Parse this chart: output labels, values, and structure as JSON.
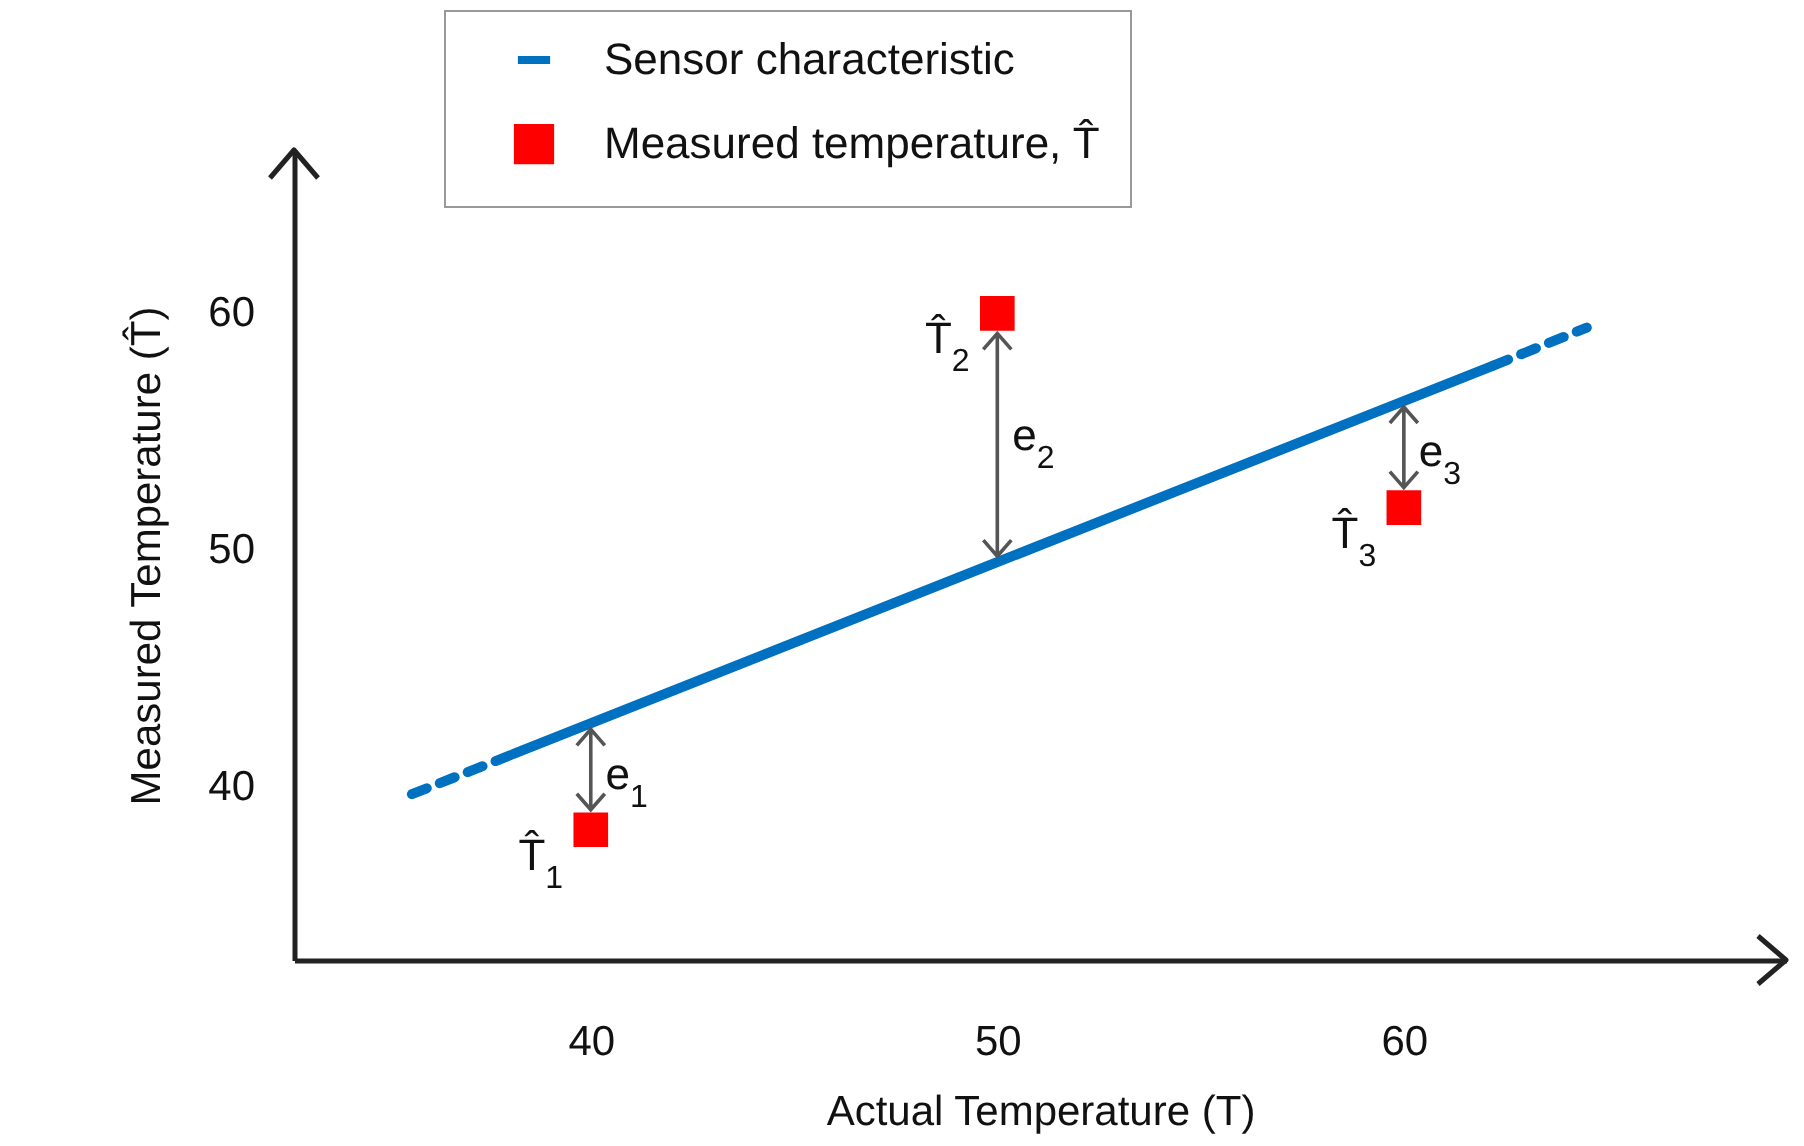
{
  "chart_data": {
    "type": "line",
    "xlabel": "Actual Temperature (T)",
    "ylabel": "Measured Temperature (T̂)",
    "xlim": [
      32.7,
      69.4
    ],
    "ylim": [
      32.7,
      66.9
    ],
    "xticks": [
      40,
      50,
      60
    ],
    "yticks": [
      40,
      50,
      60
    ],
    "legend": "top",
    "series": [
      {
        "name": "Sensor characteristic",
        "line_style": "solid",
        "color": "#0070c0",
        "x": [
          38.1,
          62.2
        ],
        "values": [
          41.4,
          57.8
        ]
      },
      {
        "line_style": "dashed",
        "color": "#0070c0",
        "x": [
          35.6,
          38.1
        ],
        "values": [
          39.7,
          41.4
        ]
      },
      {
        "line_style": "dashed",
        "color": "#0070c0",
        "x": [
          62.2,
          64.5
        ],
        "values": [
          57.8,
          59.4
        ]
      },
      {
        "name": "Measured temperature, T̂",
        "type": "scatter",
        "marker": "square",
        "color": "#ff0000",
        "x": [
          40,
          50,
          60
        ],
        "values": [
          38.2,
          60,
          51.8
        ]
      }
    ],
    "annotations": [
      {
        "text": "T̂$_{1}$",
        "x": 40,
        "y": 38.2
      },
      {
        "text": "T̂$_{2}$",
        "x": 50,
        "y": 60
      },
      {
        "text": "T̂$_{3}$",
        "x": 60,
        "y": 51.8
      },
      "e$_{1}$",
      "e$_{2}$",
      "e$_{3}$"
    ]
  }
}
